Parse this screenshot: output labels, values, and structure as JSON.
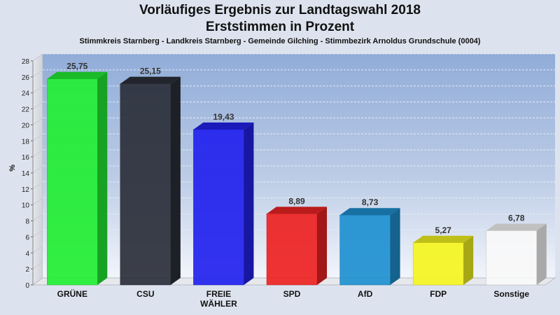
{
  "title_line1": "Vorläufiges Ergebnis zur Landtagswahl 2018",
  "title_line2": "Erststimmen in Prozent",
  "subtitle": "Stimmkreis Starnberg - Landkreis Starnberg - Gemeinde Gilching - Stimmbezirk Arnoldus Grundschule (0004)",
  "chart_data": {
    "type": "bar",
    "title": "Vorläufiges Ergebnis zur Landtagswahl 2018 - Erststimmen in Prozent",
    "xlabel": "",
    "ylabel": "%",
    "ylim": [
      0,
      28
    ],
    "yticks": [
      0,
      2,
      4,
      6,
      8,
      10,
      12,
      14,
      16,
      18,
      20,
      22,
      24,
      26,
      28
    ],
    "grid": true,
    "categories": [
      "GRÜNE",
      "CSU",
      "FREIE WÄHLER",
      "SPD",
      "AfD",
      "FDP",
      "Sonstige"
    ],
    "values": [
      25.75,
      25.15,
      19.43,
      8.89,
      8.73,
      5.27,
      6.78
    ],
    "data_labels": [
      "25,75",
      "25,15",
      "19,43",
      "8,89",
      "8,73",
      "5,27",
      "6,78"
    ],
    "colors": [
      "#22ee33",
      "#2b2f3a",
      "#2222ee",
      "#ee2222",
      "#1e90d0",
      "#f5f520",
      "#f8f8f8"
    ]
  }
}
